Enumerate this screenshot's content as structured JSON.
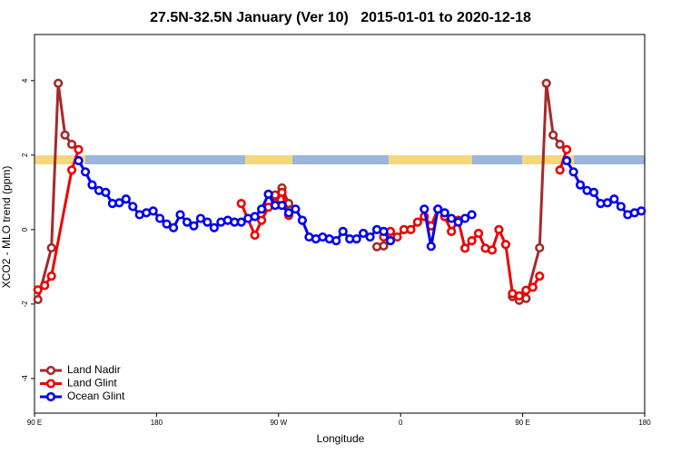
{
  "chart_data": {
    "type": "line",
    "title": "27.5N-32.5N January (Ver 10)   2015-01-01 to 2020-12-18",
    "x_label": "Longitude",
    "y_label": "XCO2 - MLO trend (ppm)",
    "xlim": [
      90,
      540
    ],
    "ylim": [
      -4.93,
      5.24
    ],
    "xticks": [
      {
        "value": 90,
        "label": "90 E"
      },
      {
        "value": 180,
        "label": "180"
      },
      {
        "value": 270,
        "label": "90 W"
      },
      {
        "value": 360,
        "label": "0"
      },
      {
        "value": 450,
        "label": "90 E"
      },
      {
        "value": 540,
        "label": "180"
      }
    ],
    "yticks": [
      -4,
      -2,
      0,
      2,
      4
    ],
    "legend": "bottom-left",
    "series": [
      {
        "name": "Land Nadir",
        "color": "#a52a2a",
        "x": [
          92.5,
          102.5,
          107.5,
          112.5,
          117.5,
          192.5,
          267.5,
          272.5,
          277.5,
          310,
          342.5,
          347.5,
          400,
          442.5,
          447.5,
          452.5,
          462.5,
          467.5,
          472.5,
          477.5
        ],
        "values": [
          -1.88,
          -0.49,
          3.93,
          2.54,
          2.29,
          null,
          0.93,
          1.12,
          0.7,
          null,
          -0.46,
          -0.44,
          null,
          -1.8,
          -1.9,
          -1.85,
          -0.49,
          3.93,
          2.54,
          2.29
        ]
      },
      {
        "name": "Land Glint",
        "color": "#ee0000",
        "x": [
          92.5,
          97.5,
          102.5,
          117.5,
          122.5,
          180,
          242.5,
          252.5,
          257.5,
          262.5,
          267.5,
          272.5,
          277.5,
          310,
          347.5,
          352.5,
          357.5,
          362.5,
          367.5,
          372.5,
          377.5,
          382.5,
          387.5,
          392.5,
          397.5,
          402.5,
          407.5,
          412.5,
          417.5,
          422.5,
          427.5,
          432.5,
          437.5,
          442.5,
          447.5,
          452.5,
          457.5,
          462.5,
          470,
          477.5,
          482.5
        ],
        "values": [
          -1.62,
          -1.5,
          -1.25,
          1.6,
          2.15,
          null,
          0.7,
          -0.15,
          0.25,
          0.6,
          0.72,
          1.0,
          0.38,
          null,
          -0.2,
          -0.05,
          -0.2,
          0,
          0,
          0.2,
          0.35,
          0.1,
          0.55,
          0.35,
          -0.05,
          0.25,
          -0.5,
          -0.3,
          -0.1,
          -0.5,
          -0.55,
          0,
          -0.4,
          -1.72,
          -1.78,
          -1.63,
          -1.55,
          -1.25,
          null,
          1.6,
          2.15
        ]
      },
      {
        "name": "Ocean Glint",
        "color": "#0000ee",
        "x": [
          122.5,
          127.5,
          132.5,
          137.5,
          142.5,
          147.5,
          152.5,
          157.5,
          162.5,
          167.5,
          172.5,
          177.5,
          182.5,
          187.5,
          192.5,
          197.5,
          202.5,
          207.5,
          212.5,
          217.5,
          222.5,
          227.5,
          232.5,
          237.5,
          242.5,
          247.5,
          252.5,
          257.5,
          262.5,
          267.5,
          272.5,
          277.5,
          282.5,
          287.5,
          292.5,
          297.5,
          302.5,
          307.5,
          312.5,
          317.5,
          322.5,
          327.5,
          332.5,
          337.5,
          342.5,
          347.5,
          352.5,
          365,
          377.5,
          382.5,
          387.5,
          392.5,
          397.5,
          402.5,
          407.5,
          412.5,
          450,
          482.5,
          487.5,
          492.5,
          497.5,
          502.5,
          507.5,
          512.5,
          517.5,
          522.5,
          527.5,
          532.5,
          537.5
        ],
        "values": [
          1.85,
          1.55,
          1.2,
          1.05,
          1.0,
          0.7,
          0.72,
          0.82,
          0.62,
          0.4,
          0.45,
          0.5,
          0.3,
          0.15,
          0.05,
          0.4,
          0.2,
          0.1,
          0.3,
          0.2,
          0.05,
          0.2,
          0.25,
          0.2,
          0.2,
          0.3,
          0.35,
          0.55,
          0.95,
          0.65,
          0.65,
          0.45,
          0.55,
          0.25,
          -0.2,
          -0.25,
          -0.2,
          -0.25,
          -0.3,
          -0.05,
          -0.25,
          -0.25,
          -0.1,
          -0.2,
          0,
          -0.05,
          -0.3,
          null,
          0.55,
          -0.45,
          0.55,
          0.45,
          0.3,
          0.2,
          0.3,
          0.4,
          null,
          1.85,
          1.55,
          1.2,
          1.05,
          1.0,
          0.7,
          0.72,
          0.82,
          0.62,
          0.4,
          0.45,
          0.5
        ]
      }
    ]
  }
}
